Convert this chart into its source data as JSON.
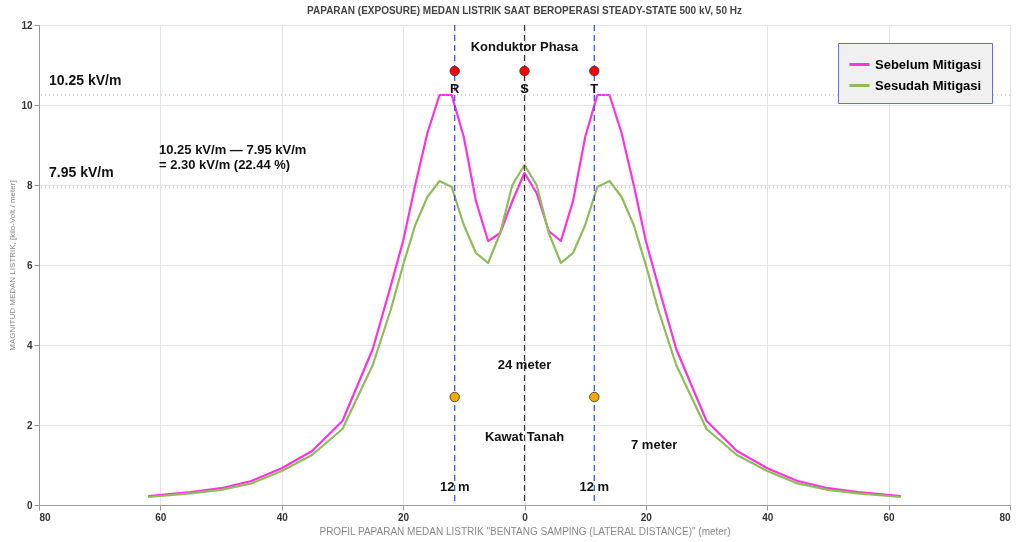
{
  "chart_data": {
    "type": "line",
    "title": "PAPARAN (EXPOSURE) MEDAN LISTRIK SAAT BEROPERASI  STEADY-STATE  500 kV, 50 Hz",
    "xlabel": "PROFIL PAPARAN MEDAN LISTRIK  \"BENTANG SAMPING (LATERAL DISTANCE)\"          (meter)",
    "ylabel": "MAGNITUD MEDAN LISTRIK, [kilo-Volt / meter]",
    "xlim": [
      -80,
      80
    ],
    "xticks": [
      {
        "value": -80,
        "label": "80"
      },
      {
        "value": -60,
        "label": "60"
      },
      {
        "value": -40,
        "label": "40"
      },
      {
        "value": -20,
        "label": "20"
      },
      0,
      20,
      40,
      60,
      80
    ],
    "ylim": [
      0,
      12
    ],
    "yticks": [
      0,
      2,
      4,
      6,
      8,
      10,
      12
    ],
    "grid": true,
    "legend": "top right",
    "marker": "none",
    "line_style": "solid",
    "series": [
      {
        "name": "Sebelum Mitigasi",
        "color": "#ff33dd",
        "x": [
          -62,
          -55,
          -50,
          -45,
          -40,
          -35,
          -30,
          -25,
          -22,
          -20,
          -18,
          -16,
          -14,
          -12,
          -10,
          -8,
          -6,
          -4,
          -2,
          0,
          2,
          4,
          6,
          8,
          10,
          12,
          14,
          16,
          18,
          20,
          22,
          25,
          30,
          35,
          40,
          45,
          50,
          55,
          62
        ],
        "values": [
          0.22,
          0.32,
          0.42,
          0.6,
          0.92,
          1.35,
          2.1,
          3.9,
          5.5,
          6.6,
          8.0,
          9.3,
          10.25,
          10.25,
          9.2,
          7.6,
          6.6,
          6.8,
          7.6,
          8.3,
          7.8,
          6.85,
          6.6,
          7.6,
          9.2,
          10.25,
          10.25,
          9.3,
          8.0,
          6.6,
          5.5,
          3.9,
          2.1,
          1.35,
          0.92,
          0.6,
          0.42,
          0.32,
          0.22
        ]
      },
      {
        "name": "Sesudah Mitigasi",
        "color": "#8fbc5a",
        "x": [
          -62,
          -55,
          -50,
          -45,
          -40,
          -35,
          -30,
          -25,
          -22,
          -20,
          -18,
          -16,
          -14,
          -12,
          -10,
          -8,
          -6,
          -4,
          -2,
          0,
          2,
          4,
          6,
          8,
          10,
          12,
          14,
          16,
          18,
          20,
          22,
          25,
          30,
          35,
          40,
          45,
          50,
          55,
          62
        ],
        "values": [
          0.2,
          0.29,
          0.38,
          0.54,
          0.85,
          1.25,
          1.9,
          3.5,
          4.9,
          6.0,
          7.0,
          7.7,
          8.1,
          7.95,
          7.0,
          6.3,
          6.05,
          6.8,
          8.0,
          8.5,
          8.0,
          6.8,
          6.05,
          6.3,
          7.0,
          7.95,
          8.1,
          7.7,
          7.0,
          6.0,
          4.9,
          3.5,
          1.9,
          1.25,
          0.85,
          0.54,
          0.38,
          0.29,
          0.2
        ]
      },
      {
        "type": "scatter",
        "color": "#ff0000",
        "marker": "circle",
        "x": [
          -11.5,
          0,
          11.5
        ],
        "values": [
          10.85,
          10.85,
          10.85
        ]
      },
      {
        "type": "scatter",
        "color": "#f5a800",
        "marker": "circle",
        "x": [
          -11.5,
          11.5
        ],
        "values": [
          2.7,
          2.7
        ]
      }
    ],
    "ref_lines": [
      {
        "axis": "x",
        "value": -11.5,
        "label": "R",
        "color": "#3344ff",
        "line_style": "dashed"
      },
      {
        "axis": "x",
        "value": 0,
        "label": "S",
        "color": "#333333",
        "line_style": "dashed"
      },
      {
        "axis": "x",
        "value": 11.5,
        "label": "T",
        "color": "#3344ff",
        "line_style": "dashed"
      },
      {
        "axis": "y",
        "value": 10.25,
        "label": "10.25 kV/m",
        "color": "#cc99ee",
        "line_style": "dotted"
      },
      {
        "axis": "y",
        "value": 7.95,
        "label": "7.95 kV/m",
        "color": "#cc99ee",
        "line_style": "dotted"
      }
    ],
    "annotations": [
      {
        "text": "Konduktor Phasa",
        "x": 0,
        "y": 11.45
      },
      "10.25 kV/m  — 7.95 kV/m\n= 2.30 kV/m (22.44 %)",
      {
        "text": "24 meter",
        "x": 0,
        "y": 3.5
      },
      {
        "text": "Kawat Tanah",
        "x": 0,
        "y": 1.7
      },
      "7 meter",
      {
        "text": "12 m",
        "x": -11.5,
        "y": 0.45
      },
      {
        "text": "12 m",
        "x": 11.5,
        "y": 0.45
      }
    ]
  }
}
